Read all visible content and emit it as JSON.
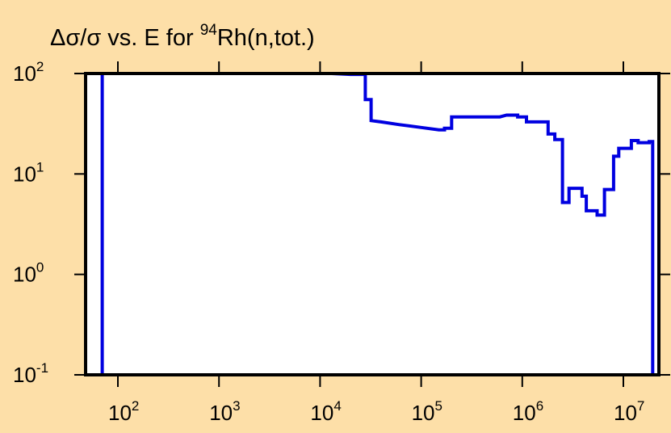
{
  "colors": {
    "background": "#fddfa8",
    "plot_fill": "#ffffff",
    "frame": "#000000",
    "series_line": "#0000e0"
  },
  "chart_data": {
    "type": "line",
    "step": true,
    "title": {
      "prefix": "Δσ/σ vs. E for ",
      "superscript": "94",
      "suffix": "Rh(n,tot.)"
    },
    "xlabel": "",
    "ylabel": "",
    "x_scale": "log",
    "y_scale": "log",
    "xlim": [
      50,
      20000000
    ],
    "ylim": [
      0.1,
      100
    ],
    "grid": false,
    "legend": "none",
    "x_ticks": [
      {
        "value": 100,
        "base": "10",
        "exp": "2"
      },
      {
        "value": 1000,
        "base": "10",
        "exp": "3"
      },
      {
        "value": 10000,
        "base": "10",
        "exp": "4"
      },
      {
        "value": 100000,
        "base": "10",
        "exp": "5"
      },
      {
        "value": 1000000,
        "base": "10",
        "exp": "6"
      },
      {
        "value": 10000000,
        "base": "10",
        "exp": "7"
      }
    ],
    "y_ticks": [
      {
        "value": 0.1,
        "base": "10",
        "exp": "-1"
      },
      {
        "value": 1,
        "base": "10",
        "exp": "0"
      },
      {
        "value": 10,
        "base": "10",
        "exp": "1"
      },
      {
        "value": 100,
        "base": "10",
        "exp": "2"
      }
    ],
    "series": [
      {
        "points": [
          [
            70,
            0.1
          ],
          [
            70,
            100
          ],
          [
            13000,
            100
          ],
          [
            20000,
            98
          ],
          [
            28000,
            98
          ],
          [
            28000,
            55
          ],
          [
            32000,
            55
          ],
          [
            32000,
            34
          ],
          [
            40000,
            33
          ],
          [
            60000,
            31
          ],
          [
            100000,
            29
          ],
          [
            150000,
            27.5
          ],
          [
            170000,
            27.5
          ],
          [
            170000,
            28.5
          ],
          [
            200000,
            28.5
          ],
          [
            200000,
            37
          ],
          [
            600000,
            37
          ],
          [
            700000,
            38.5
          ],
          [
            900000,
            38.5
          ],
          [
            900000,
            37
          ],
          [
            1100000,
            37
          ],
          [
            1100000,
            33
          ],
          [
            1800000,
            33
          ],
          [
            1800000,
            25
          ],
          [
            2100000,
            25
          ],
          [
            2100000,
            22
          ],
          [
            2500000,
            22
          ],
          [
            2500000,
            5.2
          ],
          [
            2900000,
            5.2
          ],
          [
            2900000,
            7.2
          ],
          [
            3900000,
            7.2
          ],
          [
            3900000,
            6
          ],
          [
            4300000,
            6
          ],
          [
            4300000,
            4.3
          ],
          [
            5500000,
            4.3
          ],
          [
            5500000,
            3.9
          ],
          [
            6500000,
            3.9
          ],
          [
            6500000,
            7
          ],
          [
            8000000,
            7
          ],
          [
            8000000,
            15
          ],
          [
            9000000,
            15
          ],
          [
            9000000,
            18
          ],
          [
            12000000,
            18
          ],
          [
            12000000,
            21.5
          ],
          [
            14000000,
            21.5
          ],
          [
            14000000,
            20.5
          ],
          [
            18000000,
            20.5
          ],
          [
            18000000,
            21
          ],
          [
            19500000,
            21
          ],
          [
            19500000,
            0.1
          ]
        ]
      }
    ]
  }
}
